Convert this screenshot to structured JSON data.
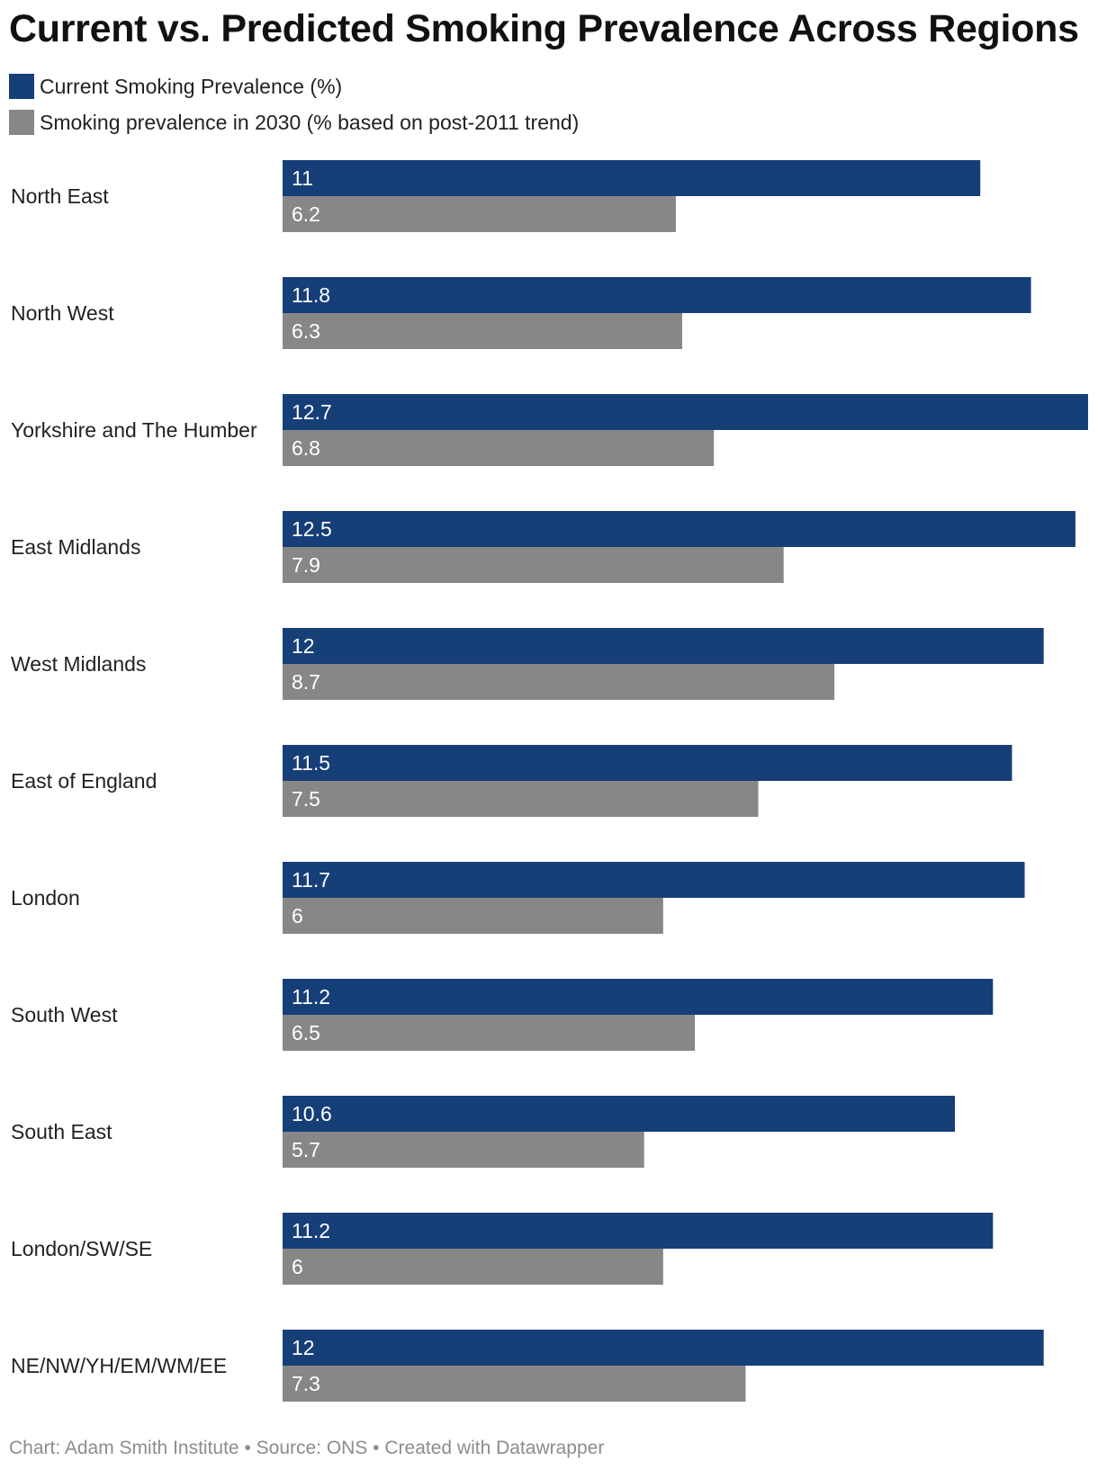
{
  "chart_data": {
    "type": "bar",
    "orientation": "horizontal",
    "title": "Current vs. Predicted Smoking Prevalence Across Regions",
    "categories": [
      "North East",
      "North West",
      "Yorkshire and The Humber",
      "East Midlands",
      "West Midlands",
      "East of England",
      "London",
      "South West",
      "South East",
      "London/SW/SE",
      "NE/NW/YH/EM/WM/EE"
    ],
    "series": [
      {
        "name": "Current Smoking Prevalence (%)",
        "color": "#163f78",
        "values": [
          11,
          11.8,
          12.7,
          12.5,
          12,
          11.5,
          11.7,
          11.2,
          10.6,
          11.2,
          12
        ]
      },
      {
        "name": "Smoking prevalence in 2030 (% based on post-2011 trend)",
        "color": "#878787",
        "values": [
          6.2,
          6.3,
          6.8,
          7.9,
          8.7,
          7.5,
          6,
          6.5,
          5.7,
          6,
          7.3
        ]
      }
    ],
    "xlim": [
      0,
      12.7
    ],
    "grid": false,
    "legend_position": "top-left",
    "label_color": "#ffffff"
  },
  "footer": "Chart: Adam Smith Institute • Source: ONS • Created with Datawrapper"
}
